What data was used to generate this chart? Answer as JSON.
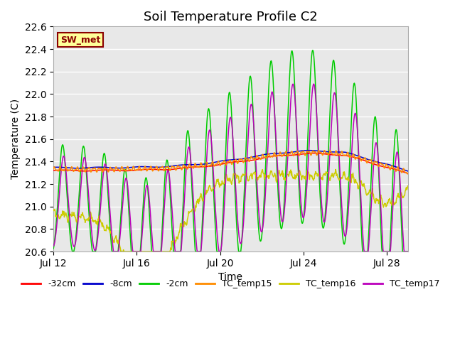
{
  "title": "Soil Temperature Profile C2",
  "xlabel": "Time",
  "ylabel": "Temperature (C)",
  "ylim": [
    20.6,
    22.6
  ],
  "xlim_days": [
    0,
    17
  ],
  "xtick_positions": [
    0,
    4,
    8,
    12,
    16
  ],
  "xtick_labels": [
    "Jul 12",
    "Jul 16",
    "Jul 20",
    "Jul 24",
    "Jul 28"
  ],
  "annotation": "SW_met",
  "annotation_color": "#8B0000",
  "annotation_bg": "#FFFF99",
  "annotation_border": "#8B0000",
  "colors": {
    "neg32cm": "#FF0000",
    "neg8cm": "#0000CC",
    "neg2cm": "#00CC00",
    "TC_temp15": "#FF8C00",
    "TC_temp16": "#CCCC00",
    "TC_temp17": "#BB00BB"
  },
  "legend_labels": [
    "-32cm",
    "-8cm",
    "-2cm",
    "TC_temp15",
    "TC_temp16",
    "TC_temp17"
  ],
  "bg_color": "#E8E8E8",
  "title_fontsize": 13,
  "axis_fontsize": 10
}
